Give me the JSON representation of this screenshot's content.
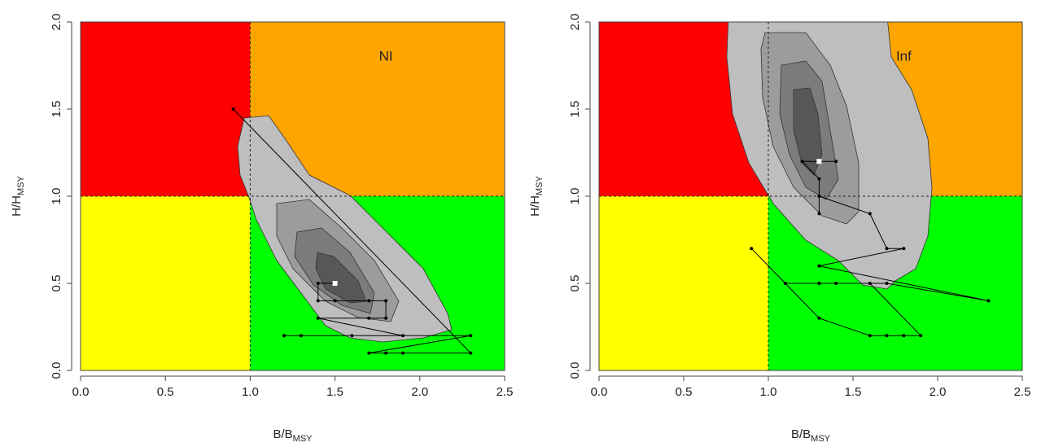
{
  "chart_data": [
    {
      "type": "kobe",
      "annotation": "NI",
      "annotation_at": [
        1.8,
        1.8
      ],
      "xlabel": "B/B",
      "xlabel_sub": "MSY",
      "ylabel": "H/H",
      "ylabel_sub": "MSY",
      "xlim": [
        0,
        2.5
      ],
      "ylim": [
        0,
        2
      ],
      "xticks": [
        {
          "value": 0,
          "label": "0.0"
        },
        {
          "value": 0.5,
          "label": "0.5"
        },
        {
          "value": 1,
          "label": "1.0"
        },
        {
          "value": 1.5,
          "label": "1.5"
        },
        {
          "value": 2,
          "label": "2.0"
        },
        {
          "value": 2.5,
          "label": "2.5"
        }
      ],
      "yticks": [
        {
          "value": 0,
          "label": "0.0"
        },
        {
          "value": 0.5,
          "label": "0.5"
        },
        {
          "value": 1,
          "label": "1.0"
        },
        {
          "value": 1.5,
          "label": "1.5"
        },
        {
          "value": 2,
          "label": "2.0"
        }
      ],
      "ref_x": 1,
      "ref_y": 1,
      "zone_colors": {
        "low_b_high_h": "#ff0000",
        "high_b_high_h": "#ffa500",
        "low_b_low_h": "#ffff00",
        "high_b_low_h": "#00ff00"
      },
      "series": [
        {
          "color": "#000000",
          "x": [
            0.9,
            2.3,
            1.9,
            1.8,
            1.7,
            2.3,
            1.2,
            1.3,
            1.6,
            1.9,
            1.4,
            1.7,
            1.8,
            1.8,
            1.7,
            1.5,
            1.4,
            1.4,
            1.5
          ],
          "y": [
            1.5,
            0.1,
            0.1,
            0.1,
            0.1,
            0.2,
            0.2,
            0.2,
            0.2,
            0.2,
            0.3,
            0.3,
            0.3,
            0.4,
            0.4,
            0.4,
            0.4,
            0.5,
            0.5
          ]
        }
      ]
    },
    {
      "type": "kobe",
      "annotation": "Inf",
      "annotation_at": [
        1.8,
        1.8
      ],
      "xlabel": "B/B",
      "xlabel_sub": "MSY",
      "ylabel": "H/H",
      "ylabel_sub": "MSY",
      "xlim": [
        0,
        2.5
      ],
      "ylim": [
        0,
        2
      ],
      "xticks": [
        {
          "value": 0,
          "label": "0.0"
        },
        {
          "value": 0.5,
          "label": "0.5"
        },
        {
          "value": 1,
          "label": "1.0"
        },
        {
          "value": 1.5,
          "label": "1.5"
        },
        {
          "value": 2,
          "label": "2.0"
        },
        {
          "value": 2.5,
          "label": "2.5"
        }
      ],
      "yticks": [
        {
          "value": 0,
          "label": "0.0"
        },
        {
          "value": 0.5,
          "label": "0.5"
        },
        {
          "value": 1,
          "label": "1.0"
        },
        {
          "value": 1.5,
          "label": "1.5"
        },
        {
          "value": 2,
          "label": "2.0"
        }
      ],
      "ref_x": 1,
      "ref_y": 1,
      "zone_colors": {
        "low_b_high_h": "#ff0000",
        "high_b_high_h": "#ffa500",
        "low_b_low_h": "#ffff00",
        "high_b_low_h": "#00ff00"
      },
      "series": [
        {
          "color": "#000000",
          "x": [
            0.9,
            1.1,
            1.3,
            1.6,
            1.7,
            1.8,
            1.9,
            1.6,
            1.4,
            1.3,
            1.1,
            1.6,
            1.7,
            2.3,
            1.3,
            1.8,
            1.7,
            1.6,
            1.3,
            1.3,
            1.3,
            1.2,
            1.4,
            1.3
          ],
          "y": [
            0.7,
            0.5,
            0.3,
            0.2,
            0.2,
            0.2,
            0.2,
            0.5,
            0.5,
            0.5,
            0.5,
            0.5,
            0.5,
            0.4,
            0.6,
            0.7,
            0.7,
            0.9,
            1.0,
            0.9,
            1.1,
            1.2,
            1.2,
            1.2
          ]
        }
      ]
    }
  ]
}
